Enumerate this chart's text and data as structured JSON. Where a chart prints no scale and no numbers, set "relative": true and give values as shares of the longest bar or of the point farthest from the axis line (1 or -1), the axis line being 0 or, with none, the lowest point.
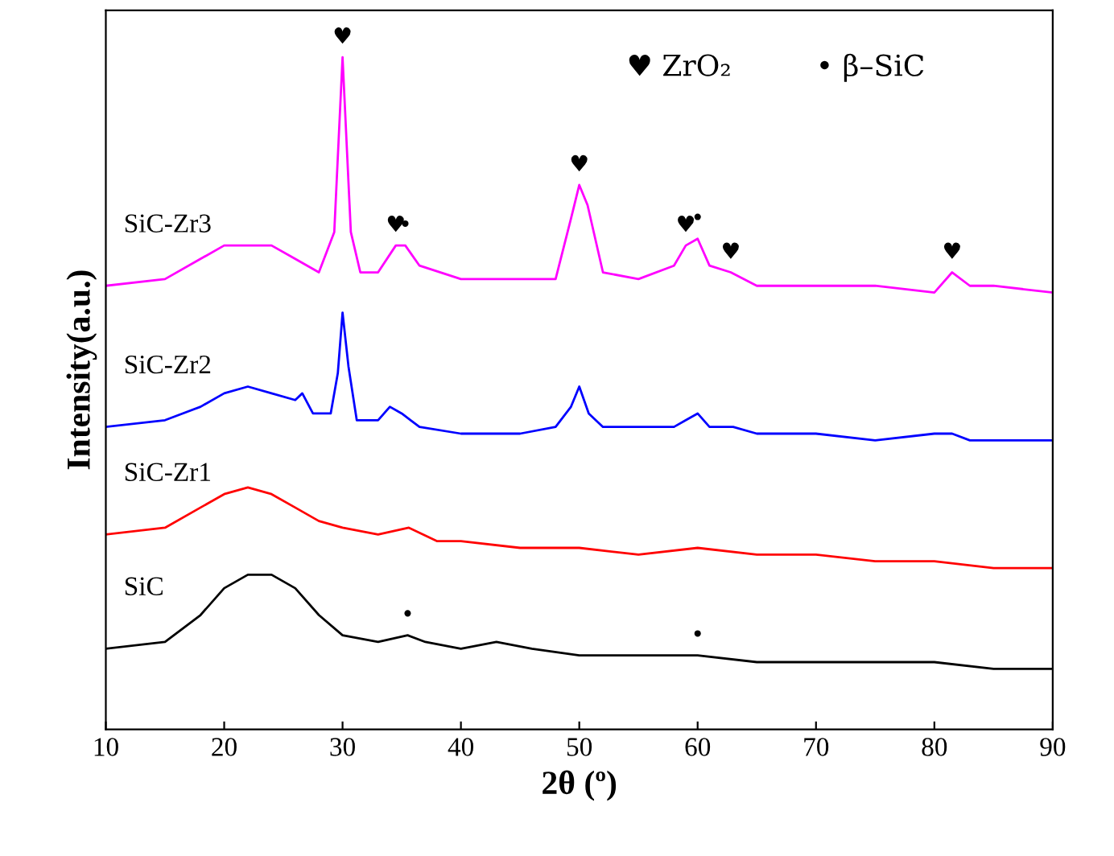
{
  "chart_data": {
    "type": "line",
    "relative": true,
    "xlabel": "2θ (º)",
    "ylabel": "Intensity(a.u.)",
    "xlim": [
      10,
      90
    ],
    "xticks": [
      10,
      20,
      30,
      40,
      50,
      60,
      70,
      80,
      90
    ],
    "tick_labels": "x",
    "grid": false,
    "marker": "none",
    "line_style": "solid",
    "series": [
      {
        "name": "SiC",
        "color": "#000000",
        "x": [
          10,
          15,
          18,
          20,
          22,
          24,
          26,
          28,
          30,
          33,
          35.5,
          37,
          40,
          43,
          46,
          50,
          55,
          60,
          65,
          70,
          75,
          80,
          85,
          90
        ],
        "values": [
          0.12,
          0.13,
          0.17,
          0.21,
          0.23,
          0.23,
          0.21,
          0.17,
          0.14,
          0.13,
          0.14,
          0.13,
          0.12,
          0.13,
          0.12,
          0.11,
          0.11,
          0.11,
          0.1,
          0.1,
          0.1,
          0.1,
          0.09,
          0.09
        ]
      },
      {
        "name": "SiC-Zr1",
        "color": "#ff0000",
        "x": [
          10,
          15,
          18,
          20,
          22,
          24,
          26,
          28,
          30,
          33,
          35.6,
          38,
          40,
          45,
          50,
          55,
          60,
          65,
          70,
          75,
          80,
          85,
          90
        ],
        "values": [
          0.29,
          0.3,
          0.33,
          0.35,
          0.36,
          0.35,
          0.33,
          0.31,
          0.3,
          0.29,
          0.3,
          0.28,
          0.28,
          0.27,
          0.27,
          0.26,
          0.27,
          0.26,
          0.26,
          0.25,
          0.25,
          0.24,
          0.24
        ]
      },
      {
        "name": "SiC-Zr2",
        "color": "#0000ff",
        "x": [
          10,
          15,
          18,
          20,
          22,
          24,
          26,
          26.6,
          27.5,
          29,
          29.6,
          30,
          30.5,
          31.2,
          33,
          34,
          35,
          36.5,
          40,
          45,
          48,
          49.3,
          50,
          50.8,
          52,
          55,
          58,
          59,
          60,
          61,
          63,
          65,
          70,
          75,
          80,
          81.5,
          83,
          90
        ],
        "values": [
          0.45,
          0.46,
          0.48,
          0.5,
          0.51,
          0.5,
          0.49,
          0.5,
          0.47,
          0.47,
          0.53,
          0.62,
          0.54,
          0.46,
          0.46,
          0.48,
          0.47,
          0.45,
          0.44,
          0.44,
          0.45,
          0.48,
          0.51,
          0.47,
          0.45,
          0.45,
          0.45,
          0.46,
          0.47,
          0.45,
          0.45,
          0.44,
          0.44,
          0.43,
          0.44,
          0.44,
          0.43,
          0.43
        ]
      },
      {
        "name": "SiC-Zr3",
        "color": "#ff00ff",
        "x": [
          10,
          15,
          18,
          20,
          22,
          24,
          26,
          28,
          29.3,
          30,
          30.7,
          31.5,
          33,
          34.5,
          35.3,
          36.5,
          40,
          45,
          48,
          49.3,
          50,
          50.7,
          52,
          55,
          58,
          59,
          60,
          61,
          62.8,
          65,
          70,
          75,
          80,
          81.5,
          83,
          85,
          90
        ],
        "values": [
          0.66,
          0.67,
          0.7,
          0.72,
          0.72,
          0.72,
          0.7,
          0.68,
          0.74,
          1,
          0.74,
          0.68,
          0.68,
          0.72,
          0.72,
          0.69,
          0.67,
          0.67,
          0.67,
          0.76,
          0.81,
          0.78,
          0.68,
          0.67,
          0.69,
          0.72,
          0.73,
          0.69,
          0.68,
          0.66,
          0.66,
          0.66,
          0.65,
          0.68,
          0.66,
          0.66,
          0.65
        ]
      }
    ],
    "annotations": [
      {
        "text": "♥",
        "x": 30,
        "y": 1
      },
      {
        "text": "♥",
        "x": 34.5,
        "y": 0.72
      },
      {
        "text": "•",
        "x": 35.3,
        "y": 0.72
      },
      {
        "text": "♥",
        "x": 50,
        "y": 0.81
      },
      {
        "text": "♥",
        "x": 59,
        "y": 0.72
      },
      {
        "text": "•",
        "x": 60,
        "y": 0.73
      },
      {
        "text": "♥",
        "x": 62.8,
        "y": 0.68
      },
      {
        "text": "♥",
        "x": 81.5,
        "y": 0.68
      },
      {
        "text": "•",
        "x": 35.5,
        "y": 0.14
      },
      {
        "text": "•",
        "x": 60,
        "y": 0.11
      },
      "♥ ZrO₂",
      "• β–SiC"
    ]
  }
}
